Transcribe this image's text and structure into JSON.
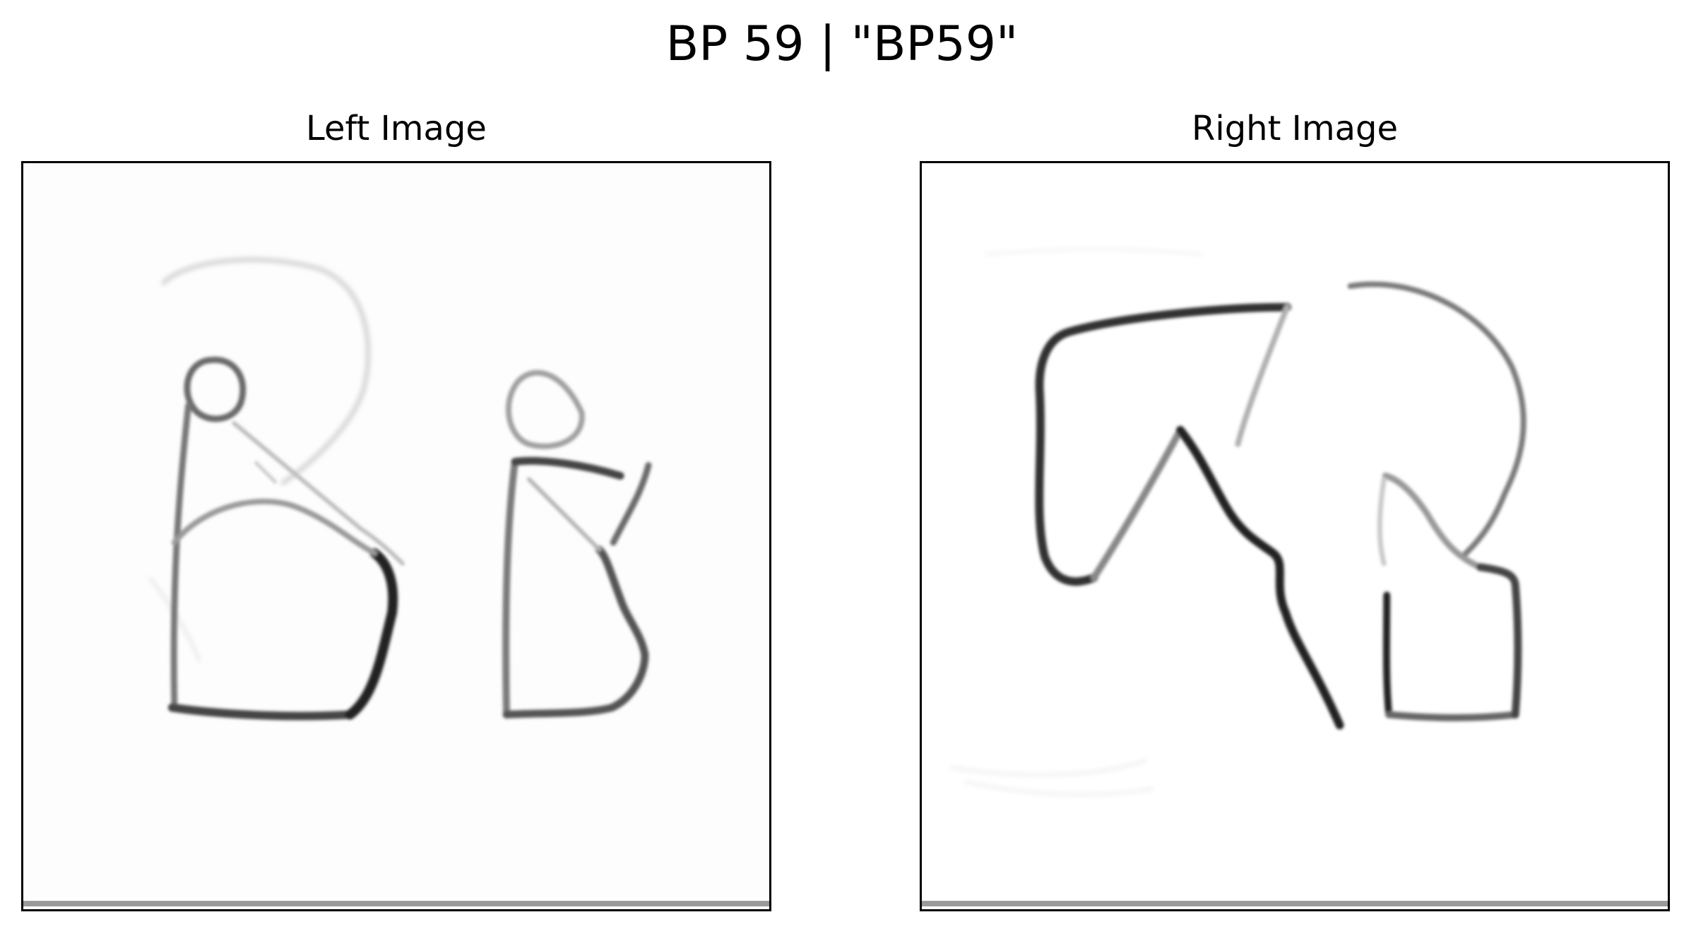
{
  "figure": {
    "title": "BP 59 | \"BP59\""
  },
  "panels": {
    "left": {
      "title": "Left Image"
    },
    "right": {
      "title": "Right Image"
    }
  }
}
